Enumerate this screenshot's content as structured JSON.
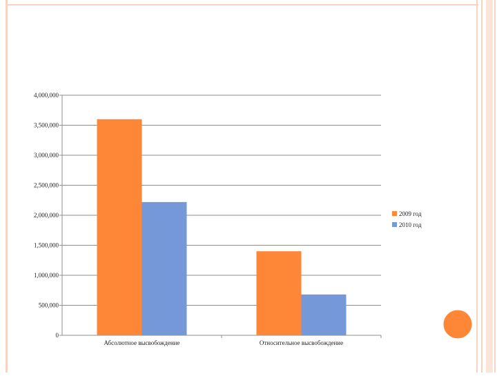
{
  "chart_data": {
    "type": "bar",
    "categories": [
      "Абсолютное высвобождение",
      "Относительное высвобождение"
    ],
    "series": [
      {
        "name": "2009 год",
        "values": [
          3600000,
          1400000
        ],
        "color": "#fe8637"
      },
      {
        "name": "2010 год",
        "values": [
          2220000,
          680000
        ],
        "color": "#7598d9"
      }
    ],
    "ylim": [
      0,
      4000000
    ],
    "yticks": [
      0,
      500000,
      1000000,
      1500000,
      2000000,
      2500000,
      3000000,
      3500000,
      4000000
    ],
    "ytick_labels": [
      "0",
      "500,000",
      "1,000,000",
      "1,500,000",
      "2,000,000",
      "2,500,000",
      "3,000,000",
      "3,500,000",
      "4,000,000"
    ],
    "grid": true,
    "legend_position": "right"
  },
  "theme": {
    "accent": "#fe8637",
    "frame_line": "#f7c9b0",
    "circle": "#fe8637"
  }
}
